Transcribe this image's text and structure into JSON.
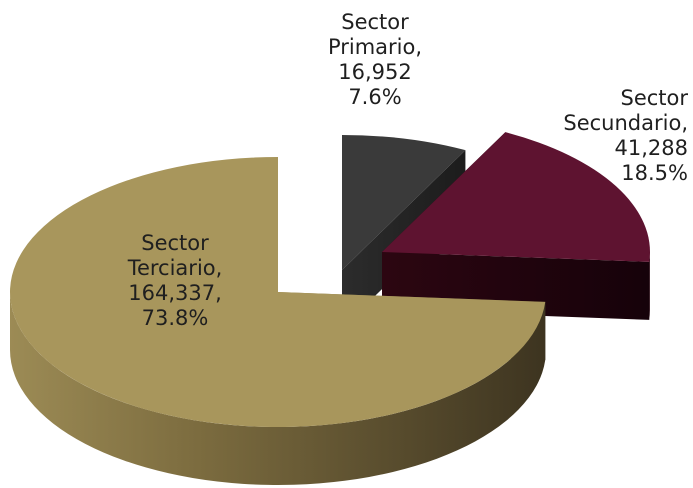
{
  "chart_data": {
    "type": "pie",
    "title": "",
    "slices": [
      {
        "label": "Sector Primario",
        "value": 16952,
        "percent": 7.6,
        "color": "#3a3a3a"
      },
      {
        "label": "Sector Secundario",
        "value": 41288,
        "percent": 18.5,
        "color": "#5e1330"
      },
      {
        "label": "Sector Terciario",
        "value": 164337,
        "percent": 73.8,
        "color": "#a8965c"
      }
    ]
  },
  "labels": {
    "primario": {
      "l1": "Sector",
      "l2": "Primario,",
      "l3": "16,952",
      "l4": "7.6%"
    },
    "secundario": {
      "l1": "Sector",
      "l2": "Secundario,",
      "l3": "41,288",
      "l4": "18.5%"
    },
    "terciario": {
      "l1": "Sector",
      "l2": "Terciario,",
      "l3": "164,337,",
      "l4": "73.8%"
    }
  }
}
